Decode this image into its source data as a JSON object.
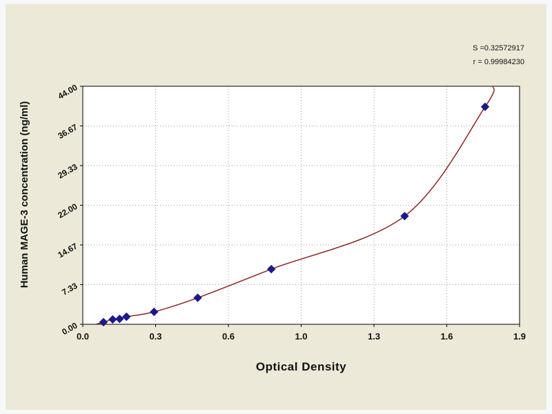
{
  "annotation": {
    "line1": "S =0.32572917",
    "line2": "r = 0.99984230"
  },
  "chart_data": {
    "type": "scatter",
    "title": "",
    "xlabel": "Optical Density",
    "ylabel": "Human MAGE-3 concentration (ng/ml)",
    "xlim": [
      0,
      1.9
    ],
    "ylim": [
      0,
      44
    ],
    "grid": true,
    "x_tick_labels": [
      "0.0",
      "0.3",
      "0.6",
      "1.0",
      "1.3",
      "1.6",
      "1.9"
    ],
    "y_tick_labels": [
      "0.00",
      "7.33",
      "14.67",
      "22.00",
      "29.33",
      "36.67",
      "44.00"
    ],
    "series": [
      {
        "name": "standard-points",
        "type": "scatter",
        "marker": "diamond",
        "color": "#1a1a8c",
        "points": [
          [
            0.09,
            0.4
          ],
          [
            0.13,
            0.9
          ],
          [
            0.16,
            1.0
          ],
          [
            0.19,
            1.4
          ],
          [
            0.31,
            2.3
          ],
          [
            0.5,
            4.9
          ],
          [
            0.82,
            10.2
          ],
          [
            1.4,
            20.0
          ],
          [
            1.75,
            40.2
          ]
        ]
      },
      {
        "name": "fit-curve",
        "type": "line",
        "color": "#8b2323",
        "points": [
          [
            0.06,
            0.05
          ],
          [
            0.09,
            0.4
          ],
          [
            0.13,
            0.9
          ],
          [
            0.16,
            1.0
          ],
          [
            0.19,
            1.4
          ],
          [
            0.31,
            2.3
          ],
          [
            0.5,
            4.9
          ],
          [
            0.82,
            10.2
          ],
          [
            1.4,
            20.0
          ],
          [
            1.75,
            40.2
          ],
          [
            1.785,
            44
          ]
        ]
      }
    ],
    "colors": {
      "panel_bg": "#ece9d8",
      "plot_bg": "#ffffff",
      "grid": "#9a9a9a",
      "border": "#000000",
      "curve": "#8b2323",
      "marker": "#1a1a8c"
    }
  }
}
